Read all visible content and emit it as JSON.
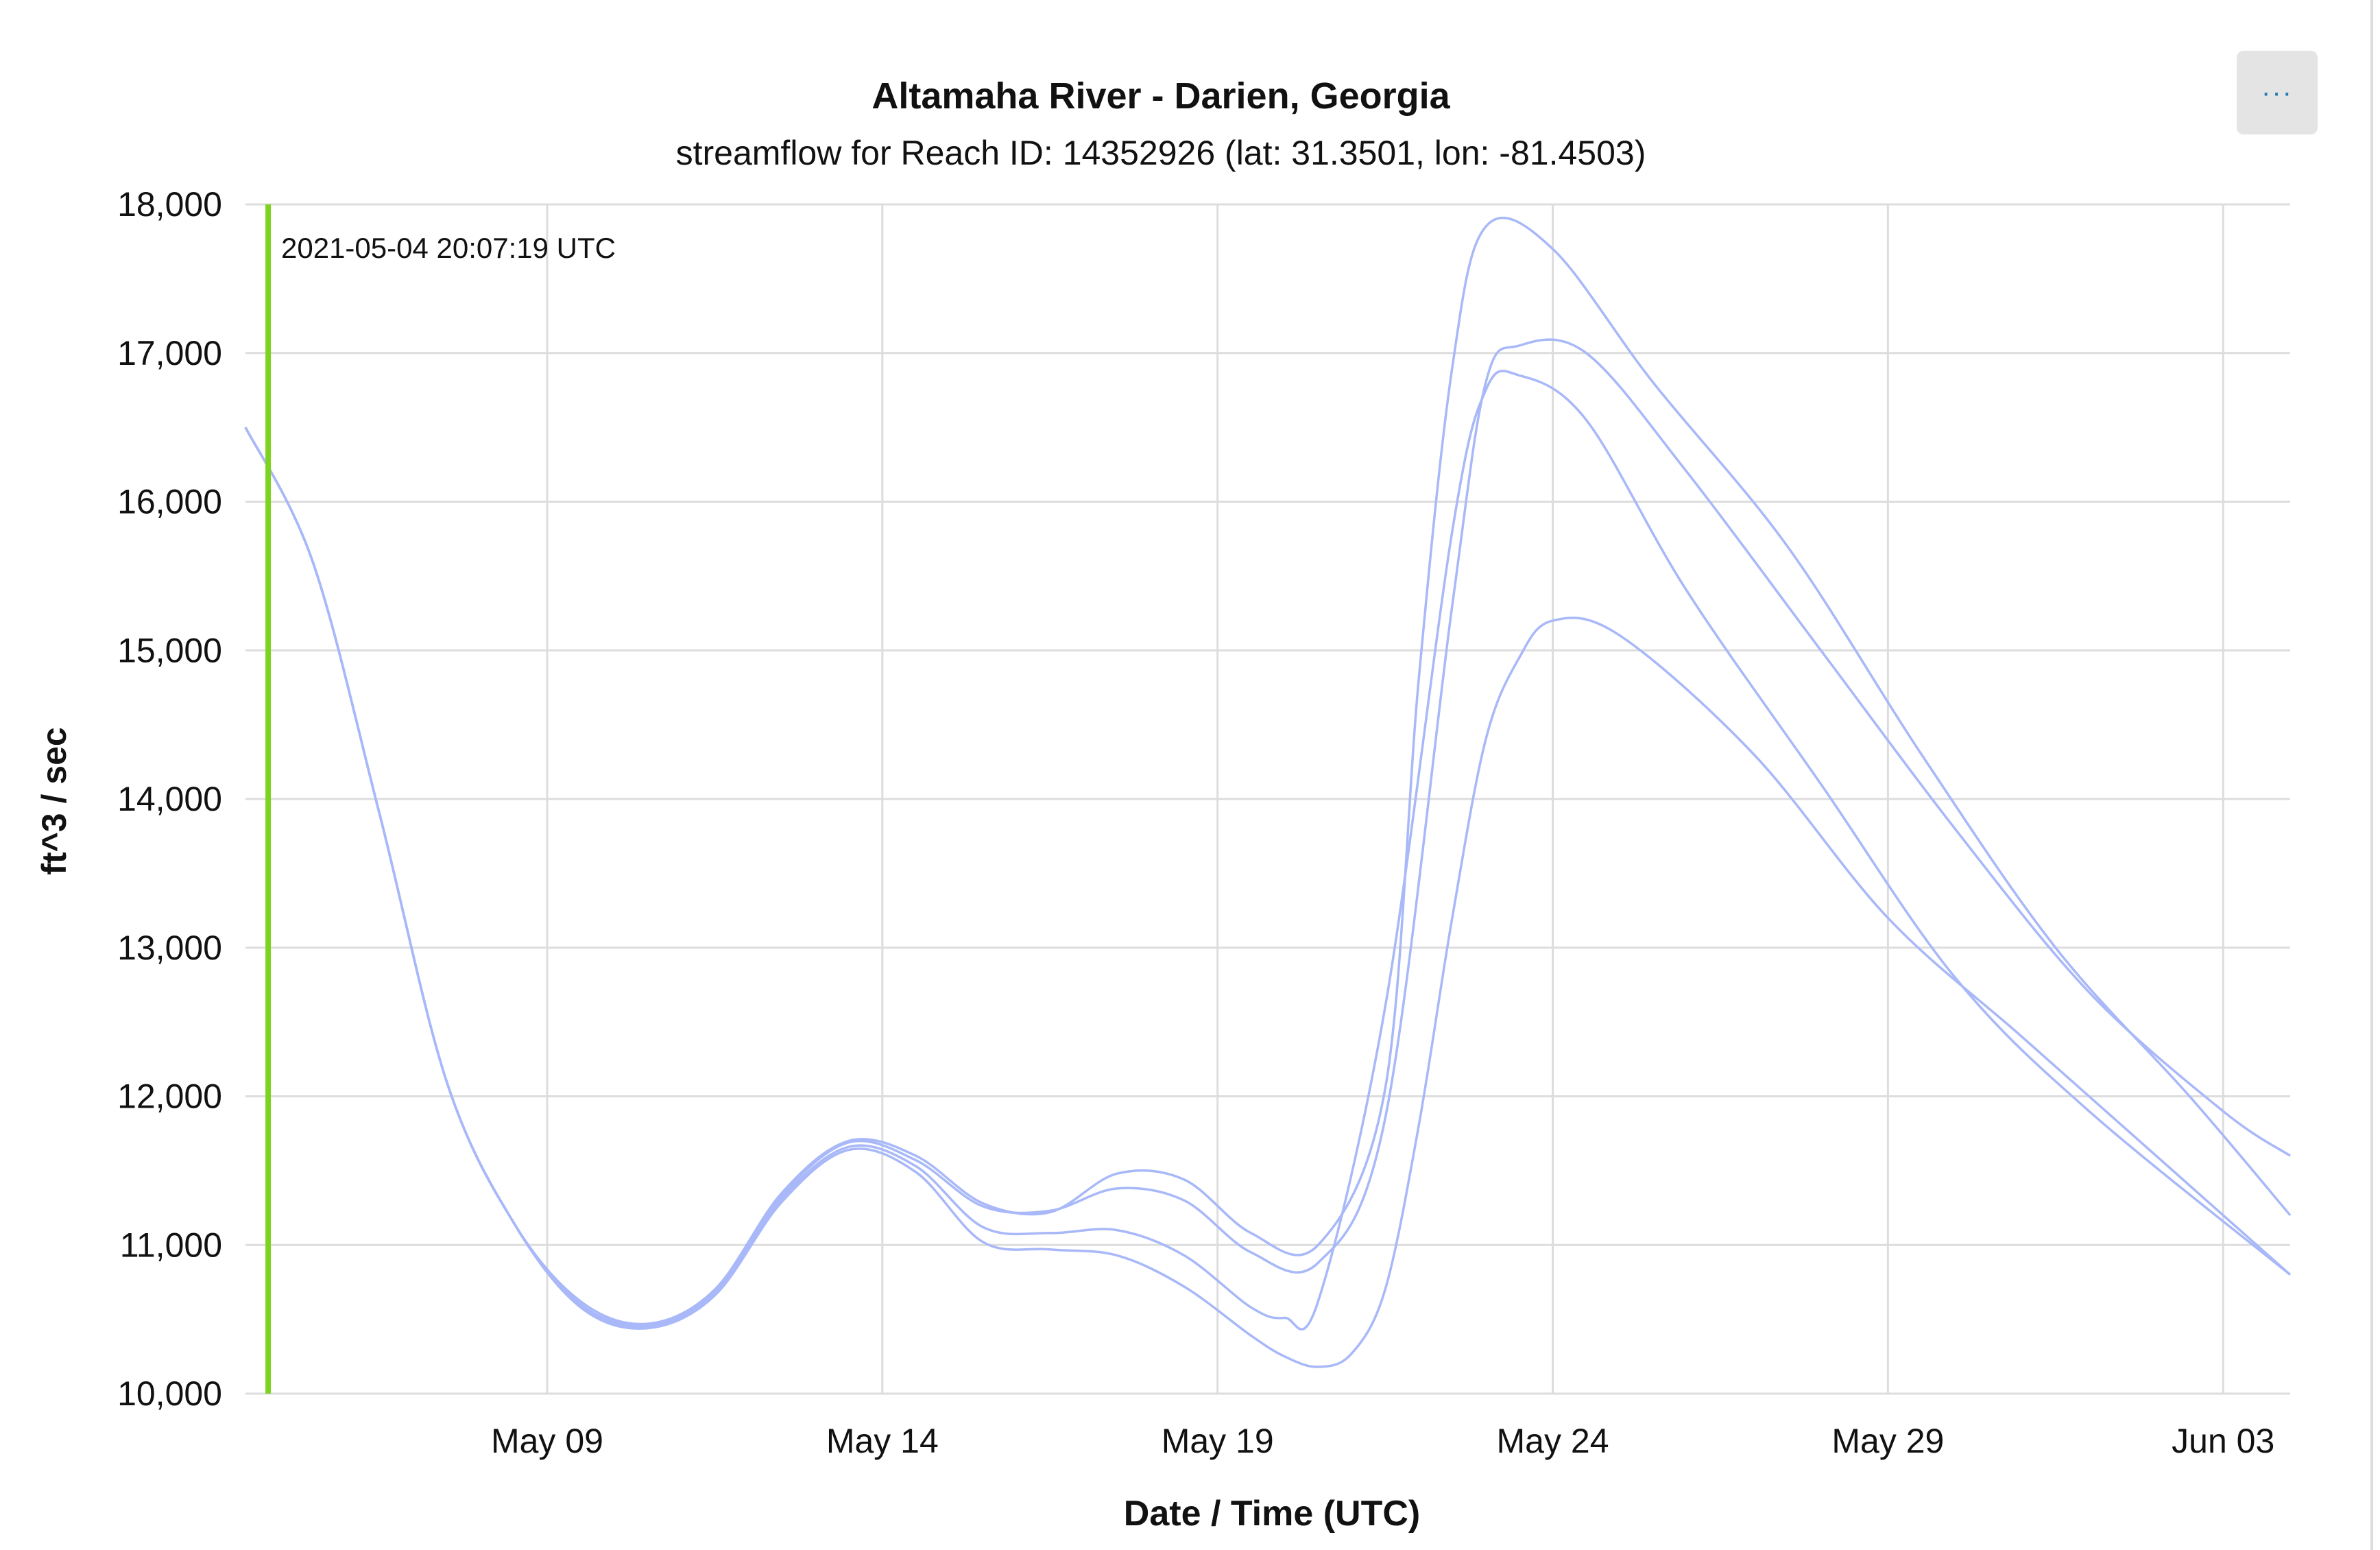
{
  "menu": {
    "label": "···",
    "icon": "more-options-icon"
  },
  "chart_data": {
    "type": "line",
    "title": "Altamaha River - Darien, Georgia",
    "subtitle": "streamflow for Reach ID: 14352926 (lat: 31.3501, lon: -81.4503)",
    "xlabel": "Date / Time (UTC)",
    "ylabel": "ft^3 / sec",
    "xlim": [
      "2021-05-04T12:00",
      "2021-06-04T00:00"
    ],
    "ylim": [
      10000,
      18000
    ],
    "y_ticks": [
      10000,
      11000,
      12000,
      13000,
      14000,
      15000,
      16000,
      17000,
      18000
    ],
    "y_tick_labels": [
      "10,000",
      "11,000",
      "12,000",
      "13,000",
      "14,000",
      "15,000",
      "16,000",
      "17,000",
      "18,000"
    ],
    "x_ticks": [
      "2021-05-09",
      "2021-05-14",
      "2021-05-19",
      "2021-05-24",
      "2021-05-29",
      "2021-06-03"
    ],
    "x_tick_labels": [
      "May 09",
      "May 14",
      "May 19",
      "May 24",
      "May 29",
      "Jun 03"
    ],
    "grid": true,
    "line_color": "#a8b8f8",
    "marker": {
      "date": "2021-05-04T20:07:19",
      "label": "2021-05-04 20:07:19 UTC",
      "color": "#7ed321"
    },
    "series": [
      {
        "x": [
          "2021-05-04T12:00",
          "2021-05-05T12:00",
          "2021-05-06T12:00",
          "2021-05-07T12:00",
          "2021-05-08T12:00",
          "2021-05-09T12:00",
          "2021-05-10T12:00",
          "2021-05-11T12:00",
          "2021-05-12T12:00",
          "2021-05-13T12:00",
          "2021-05-14T12:00",
          "2021-05-15T12:00",
          "2021-05-16T12:00",
          "2021-05-17T12:00",
          "2021-05-18T12:00",
          "2021-05-19T12:00",
          "2021-05-20T12:00",
          "2021-05-21T12:00",
          "2021-05-22T00:00",
          "2021-05-22T12:00",
          "2021-05-23T00:00",
          "2021-05-24T00:00",
          "2021-05-25T12:00",
          "2021-05-27T12:00",
          "2021-05-29T12:00",
          "2021-05-31T12:00",
          "2021-06-02T12:00",
          "2021-06-04T00:00"
        ],
        "values": [
          16500,
          15600,
          13900,
          12100,
          11150,
          10620,
          10470,
          10700,
          11350,
          11700,
          11600,
          11280,
          11220,
          11480,
          11440,
          11080,
          11000,
          12050,
          14800,
          16900,
          17850,
          17700,
          16800,
          15700,
          14300,
          13000,
          12000,
          11200
        ]
      },
      {
        "x": [
          "2021-05-04T12:00",
          "2021-05-05T12:00",
          "2021-05-06T12:00",
          "2021-05-07T12:00",
          "2021-05-08T12:00",
          "2021-05-09T12:00",
          "2021-05-10T12:00",
          "2021-05-11T12:00",
          "2021-05-12T12:00",
          "2021-05-13T12:00",
          "2021-05-14T12:00",
          "2021-05-15T12:00",
          "2021-05-16T12:00",
          "2021-05-17T12:00",
          "2021-05-18T12:00",
          "2021-05-19T12:00",
          "2021-05-20T12:00",
          "2021-05-21T12:00",
          "2021-05-22T12:00",
          "2021-05-23T00:00",
          "2021-05-23T12:00",
          "2021-05-24T12:00",
          "2021-05-26T00:00",
          "2021-05-28T00:00",
          "2021-05-30T00:00",
          "2021-06-01T00:00",
          "2021-06-03T00:00",
          "2021-06-04T00:00"
        ],
        "values": [
          16500,
          15600,
          13900,
          12100,
          11150,
          10600,
          10460,
          10680,
          11330,
          11690,
          11570,
          11260,
          11230,
          11380,
          11300,
          10950,
          10880,
          11850,
          15300,
          16800,
          17050,
          17000,
          16200,
          15000,
          13800,
          12700,
          11900,
          11600
        ]
      },
      {
        "x": [
          "2021-05-04T12:00",
          "2021-05-05T12:00",
          "2021-05-06T12:00",
          "2021-05-07T12:00",
          "2021-05-08T12:00",
          "2021-05-09T12:00",
          "2021-05-10T12:00",
          "2021-05-11T12:00",
          "2021-05-12T12:00",
          "2021-05-13T12:00",
          "2021-05-14T12:00",
          "2021-05-15T12:00",
          "2021-05-16T12:00",
          "2021-05-17T12:00",
          "2021-05-18T12:00",
          "2021-05-19T12:00",
          "2021-05-20T00:00",
          "2021-05-20T12:00",
          "2021-05-21T12:00",
          "2021-05-22T12:00",
          "2021-05-23T00:00",
          "2021-05-23T12:00",
          "2021-05-24T12:00",
          "2021-05-26T00:00",
          "2021-05-28T00:00",
          "2021-05-30T00:00",
          "2021-06-01T00:00",
          "2021-06-04T00:00"
        ],
        "values": [
          16500,
          15600,
          13900,
          12100,
          11150,
          10590,
          10450,
          10670,
          11310,
          11660,
          11530,
          11120,
          11080,
          11100,
          10930,
          10580,
          10510,
          10620,
          12600,
          15800,
          16750,
          16850,
          16550,
          15400,
          14100,
          12800,
          11900,
          10800
        ]
      },
      {
        "x": [
          "2021-05-04T12:00",
          "2021-05-05T12:00",
          "2021-05-06T12:00",
          "2021-05-07T12:00",
          "2021-05-08T12:00",
          "2021-05-09T12:00",
          "2021-05-10T12:00",
          "2021-05-11T12:00",
          "2021-05-12T12:00",
          "2021-05-13T12:00",
          "2021-05-14T12:00",
          "2021-05-15T12:00",
          "2021-05-16T12:00",
          "2021-05-17T12:00",
          "2021-05-18T12:00",
          "2021-05-19T12:00",
          "2021-05-20T00:00",
          "2021-05-20T12:00",
          "2021-05-21T00:00",
          "2021-05-21T12:00",
          "2021-05-22T00:00",
          "2021-05-22T12:00",
          "2021-05-23T00:00",
          "2021-05-23T12:00",
          "2021-05-24T00:00",
          "2021-05-25T00:00",
          "2021-05-27T00:00",
          "2021-05-29T00:00",
          "2021-05-31T00:00",
          "2021-06-02T00:00",
          "2021-06-04T00:00"
        ],
        "values": [
          16500,
          15600,
          13900,
          12100,
          11150,
          10580,
          10440,
          10660,
          11290,
          11640,
          11490,
          11020,
          10970,
          10930,
          10720,
          10390,
          10250,
          10180,
          10270,
          10700,
          11800,
          13200,
          14400,
          14950,
          15200,
          15100,
          14300,
          13200,
          12400,
          11600,
          10800
        ]
      }
    ]
  }
}
